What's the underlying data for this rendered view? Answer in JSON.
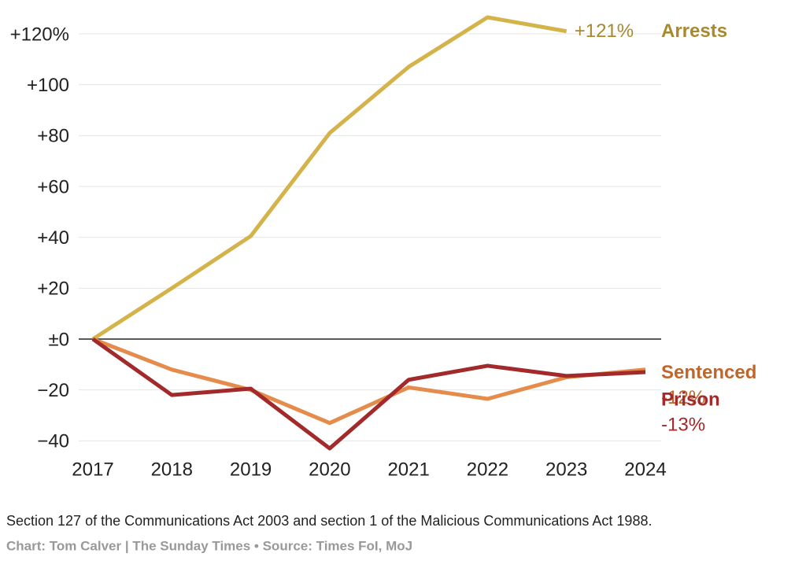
{
  "chart_data": {
    "type": "line",
    "categories": [
      "2017",
      "2018",
      "2019",
      "2020",
      "2021",
      "2022",
      "2023",
      "2024"
    ],
    "series": [
      {
        "name": "Arrests",
        "color": "#d4b34b",
        "label_color": "#a8892e",
        "values": [
          0,
          20,
          40.5,
          81,
          107,
          126.5,
          121,
          null
        ],
        "value_labels": [
          null,
          null,
          null,
          null,
          null,
          null,
          "+121%",
          null
        ]
      },
      {
        "name": "Sentenced",
        "color": "#e58c4c",
        "label_color": "#c0662a",
        "values": [
          0,
          -12,
          -20,
          -33,
          -19,
          -23.5,
          -15,
          -12
        ],
        "value_labels": [
          null,
          null,
          null,
          null,
          null,
          null,
          null,
          "-12%"
        ]
      },
      {
        "name": "Prison",
        "color": "#a32a2a",
        "label_color": "#a32a2a",
        "values": [
          0,
          -22,
          -19.5,
          -43,
          -16,
          -10.5,
          -14.5,
          -13
        ],
        "value_labels": [
          null,
          null,
          null,
          null,
          null,
          null,
          null,
          "-13%"
        ]
      }
    ],
    "ylim": [
      -45,
      130
    ],
    "yticks": [
      {
        "value": -40,
        "label": "−40"
      },
      {
        "value": -20,
        "label": "−20"
      },
      {
        "value": 0,
        "label": "±0"
      },
      {
        "value": 20,
        "label": "+20"
      },
      {
        "value": 40,
        "label": "+40"
      },
      {
        "value": 60,
        "label": "+60"
      },
      {
        "value": 80,
        "label": "+80"
      },
      {
        "value": 100,
        "label": "+100"
      },
      {
        "value": 120,
        "label": "+120%"
      }
    ],
    "grid": true,
    "note": "Section 127 of the Communications Act 2003 and section 1 of the Malicious Communications Act 1988.",
    "source": "Chart: Tom Calver | The Sunday Times • Source: Times FoI, MoJ"
  }
}
